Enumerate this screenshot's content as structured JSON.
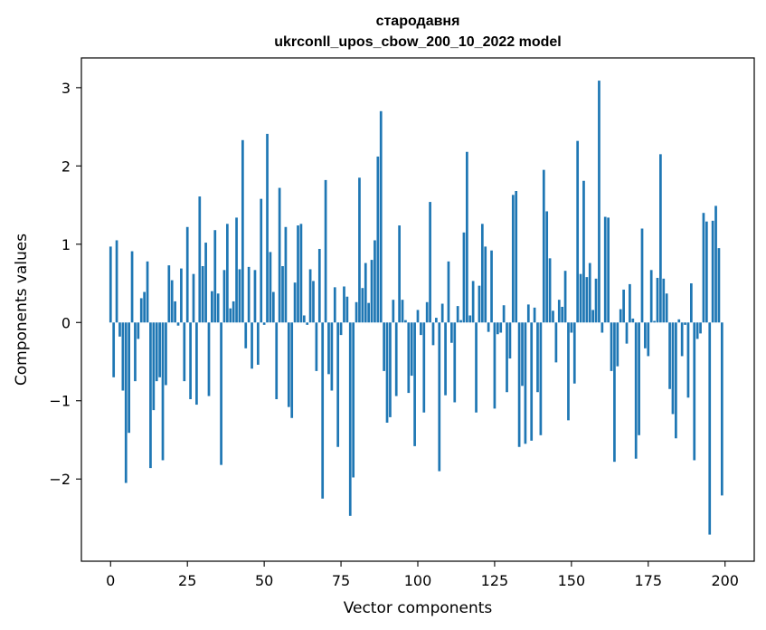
{
  "chart_data": {
    "type": "bar",
    "title_lines": [
      "стародавня",
      "ukrconll_upos_cbow_200_10_2022 model"
    ],
    "xlabel": "Vector components",
    "ylabel": "Components values",
    "bar_color": "#1f77b4",
    "xlim": [
      -9.5,
      209.5
    ],
    "ylim": [
      -3.05,
      3.38
    ],
    "xticks": [
      0,
      25,
      50,
      75,
      100,
      125,
      150,
      175,
      200
    ],
    "yticks": [
      -2,
      -1,
      0,
      1,
      2,
      3
    ],
    "ytick_labels": [
      "−2",
      "−1",
      "0",
      "1",
      "2",
      "3"
    ],
    "grid": false,
    "x": [
      0,
      1,
      2,
      3,
      4,
      5,
      6,
      7,
      8,
      9,
      10,
      11,
      12,
      13,
      14,
      15,
      16,
      17,
      18,
      19,
      20,
      21,
      22,
      23,
      24,
      25,
      26,
      27,
      28,
      29,
      30,
      31,
      32,
      33,
      34,
      35,
      36,
      37,
      38,
      39,
      40,
      41,
      42,
      43,
      44,
      45,
      46,
      47,
      48,
      49,
      50,
      51,
      52,
      53,
      54,
      55,
      56,
      57,
      58,
      59,
      60,
      61,
      62,
      63,
      64,
      65,
      66,
      67,
      68,
      69,
      70,
      71,
      72,
      73,
      74,
      75,
      76,
      77,
      78,
      79,
      80,
      81,
      82,
      83,
      84,
      85,
      86,
      87,
      88,
      89,
      90,
      91,
      92,
      93,
      94,
      95,
      96,
      97,
      98,
      99,
      100,
      101,
      102,
      103,
      104,
      105,
      106,
      107,
      108,
      109,
      110,
      111,
      112,
      113,
      114,
      115,
      116,
      117,
      118,
      119,
      120,
      121,
      122,
      123,
      124,
      125,
      126,
      127,
      128,
      129,
      130,
      131,
      132,
      133,
      134,
      135,
      136,
      137,
      138,
      139,
      140,
      141,
      142,
      143,
      144,
      145,
      146,
      147,
      148,
      149,
      150,
      151,
      152,
      153,
      154,
      155,
      156,
      157,
      158,
      159,
      160,
      161,
      162,
      163,
      164,
      165,
      166,
      167,
      168,
      169,
      170,
      171,
      172,
      173,
      174,
      175,
      176,
      177,
      178,
      179,
      180,
      181,
      182,
      183,
      184,
      185,
      186,
      187,
      188,
      189,
      190,
      191,
      192,
      193,
      194,
      195,
      196,
      197,
      198,
      199
    ],
    "values": [
      0.97,
      -0.7,
      1.05,
      -0.18,
      -0.87,
      -2.05,
      -1.41,
      0.91,
      -0.75,
      -0.21,
      0.31,
      0.39,
      0.78,
      -1.86,
      -1.12,
      -0.75,
      -0.7,
      -1.76,
      -0.8,
      0.73,
      0.54,
      0.27,
      -0.04,
      0.69,
      -0.75,
      1.22,
      -0.98,
      0.62,
      -1.05,
      1.61,
      0.72,
      1.02,
      -0.94,
      0.4,
      1.18,
      0.37,
      -1.82,
      0.67,
      1.26,
      0.18,
      0.27,
      1.34,
      0.68,
      2.33,
      -0.33,
      0.71,
      -0.59,
      0.67,
      -0.54,
      1.58,
      -0.03,
      2.41,
      0.9,
      0.39,
      -0.98,
      1.72,
      0.72,
      1.22,
      -1.08,
      -1.22,
      0.51,
      1.24,
      1.26,
      0.09,
      -0.03,
      0.68,
      0.53,
      -0.62,
      0.94,
      -2.25,
      1.82,
      -0.66,
      -0.87,
      0.45,
      -1.59,
      -0.16,
      0.46,
      0.33,
      -2.47,
      -1.98,
      0.26,
      1.85,
      0.44,
      0.76,
      0.25,
      0.8,
      1.05,
      2.12,
      2.7,
      -0.62,
      -1.28,
      -1.21,
      0.29,
      -0.94,
      1.24,
      0.29,
      0.03,
      -0.9,
      -0.68,
      -1.58,
      0.16,
      -0.16,
      -1.15,
      0.26,
      1.54,
      -0.29,
      0.06,
      -1.9,
      0.24,
      -0.93,
      0.78,
      -0.26,
      -1.02,
      0.21,
      0.03,
      1.15,
      2.18,
      0.09,
      0.53,
      -1.15,
      0.47,
      1.26,
      0.97,
      -0.12,
      0.92,
      -1.1,
      -0.15,
      -0.13,
      0.22,
      -0.89,
      -0.46,
      1.63,
      1.68,
      -1.59,
      -0.81,
      -1.55,
      0.23,
      -1.51,
      0.19,
      -0.89,
      -1.44,
      1.95,
      1.42,
      0.82,
      0.15,
      -0.51,
      0.29,
      0.2,
      0.66,
      -1.25,
      -0.13,
      -0.78,
      2.32,
      0.62,
      1.81,
      0.58,
      0.76,
      0.16,
      0.56,
      3.09,
      -0.13,
      1.35,
      1.34,
      -0.62,
      -1.78,
      -0.56,
      0.17,
      0.42,
      -0.27,
      0.49,
      0.05,
      -1.74,
      -1.44,
      1.2,
      -0.33,
      -0.43,
      0.67,
      0.02,
      0.57,
      2.15,
      0.56,
      0.37,
      -0.85,
      -1.17,
      -1.48,
      0.04,
      -0.43,
      -0.03,
      -0.96,
      0.5,
      -1.76,
      -0.21,
      -0.14,
      1.4,
      1.29,
      -2.71,
      1.3,
      1.49,
      0.95,
      -2.21
    ]
  }
}
